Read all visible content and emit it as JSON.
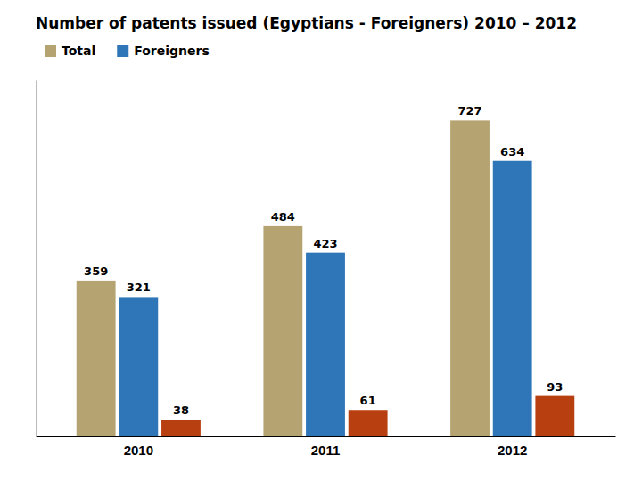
{
  "chart_data": {
    "type": "bar",
    "title": "Number of patents issued (Egyptians - Foreigners) 2010 – 2012",
    "categories": [
      "2010",
      "2011",
      "2012"
    ],
    "series": [
      {
        "name": "Total",
        "color": "#b5a472",
        "values": [
          359,
          484,
          727
        ]
      },
      {
        "name": "Foreigners",
        "color": "#2e76b8",
        "values": [
          321,
          423,
          634
        ]
      },
      {
        "color": "#b84010",
        "values": [
          38,
          61,
          93
        ]
      }
    ],
    "ylim": [
      0,
      820
    ],
    "data_labels": true,
    "tick_labels": "x",
    "legend": "upper left"
  }
}
